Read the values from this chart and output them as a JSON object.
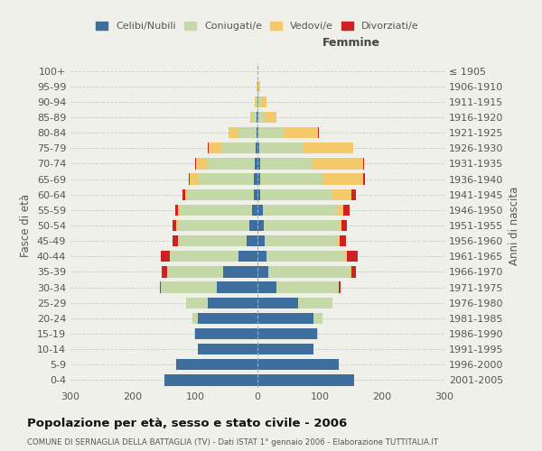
{
  "age_groups": [
    "0-4",
    "5-9",
    "10-14",
    "15-19",
    "20-24",
    "25-29",
    "30-34",
    "35-39",
    "40-44",
    "45-49",
    "50-54",
    "55-59",
    "60-64",
    "65-69",
    "70-74",
    "75-79",
    "80-84",
    "85-89",
    "90-94",
    "95-99",
    "100+"
  ],
  "birth_years": [
    "2001-2005",
    "1996-2000",
    "1991-1995",
    "1986-1990",
    "1981-1985",
    "1976-1980",
    "1971-1975",
    "1966-1970",
    "1961-1965",
    "1956-1960",
    "1951-1955",
    "1946-1950",
    "1941-1945",
    "1936-1940",
    "1931-1935",
    "1926-1930",
    "1921-1925",
    "1916-1920",
    "1911-1915",
    "1906-1910",
    "≤ 1905"
  ],
  "males": {
    "celibi": [
      150,
      130,
      95,
      100,
      95,
      80,
      65,
      55,
      30,
      17,
      13,
      9,
      6,
      6,
      5,
      3,
      2,
      1,
      0,
      0,
      0
    ],
    "coniugati": [
      0,
      0,
      0,
      2,
      10,
      35,
      90,
      90,
      110,
      110,
      115,
      115,
      105,
      90,
      75,
      55,
      30,
      6,
      2,
      1,
      0
    ],
    "vedovi": [
      0,
      0,
      0,
      0,
      0,
      0,
      0,
      0,
      0,
      1,
      2,
      3,
      5,
      12,
      18,
      20,
      15,
      5,
      2,
      0,
      0
    ],
    "divorziati": [
      0,
      0,
      0,
      0,
      0,
      0,
      2,
      8,
      15,
      8,
      6,
      5,
      5,
      2,
      2,
      1,
      0,
      0,
      0,
      0,
      0
    ]
  },
  "females": {
    "nubili": [
      155,
      130,
      90,
      95,
      90,
      65,
      30,
      18,
      15,
      12,
      10,
      8,
      5,
      5,
      4,
      3,
      2,
      1,
      1,
      0,
      0
    ],
    "coniugate": [
      0,
      0,
      0,
      2,
      15,
      55,
      100,
      130,
      125,
      115,
      120,
      120,
      115,
      100,
      85,
      70,
      40,
      12,
      5,
      2,
      0
    ],
    "vedove": [
      0,
      0,
      0,
      0,
      0,
      0,
      0,
      2,
      3,
      5,
      5,
      10,
      30,
      65,
      80,
      80,
      55,
      18,
      8,
      3,
      0
    ],
    "divorziate": [
      0,
      0,
      0,
      0,
      0,
      0,
      3,
      8,
      18,
      10,
      8,
      10,
      8,
      3,
      2,
      0,
      1,
      0,
      0,
      0,
      0
    ]
  },
  "colors": {
    "celibi": "#3d6e9e",
    "coniugati": "#c5d9a8",
    "vedovi": "#f5c96a",
    "divorziati": "#cc2222"
  },
  "xlim": 300,
  "title": "Popolazione per età, sesso e stato civile - 2006",
  "subtitle": "COMUNE DI SERNAGLIA DELLA BATTAGLIA (TV) - Dati ISTAT 1° gennaio 2006 - Elaborazione TUTTITALIA.IT",
  "ylabel_left": "Fasce di età",
  "ylabel_right": "Anni di nascita",
  "legend_labels": [
    "Celibi/Nubili",
    "Coniugati/e",
    "Vedovi/e",
    "Divorziati/e"
  ],
  "femmine_label": "Femmine",
  "bg_color": "#f0f0eb"
}
